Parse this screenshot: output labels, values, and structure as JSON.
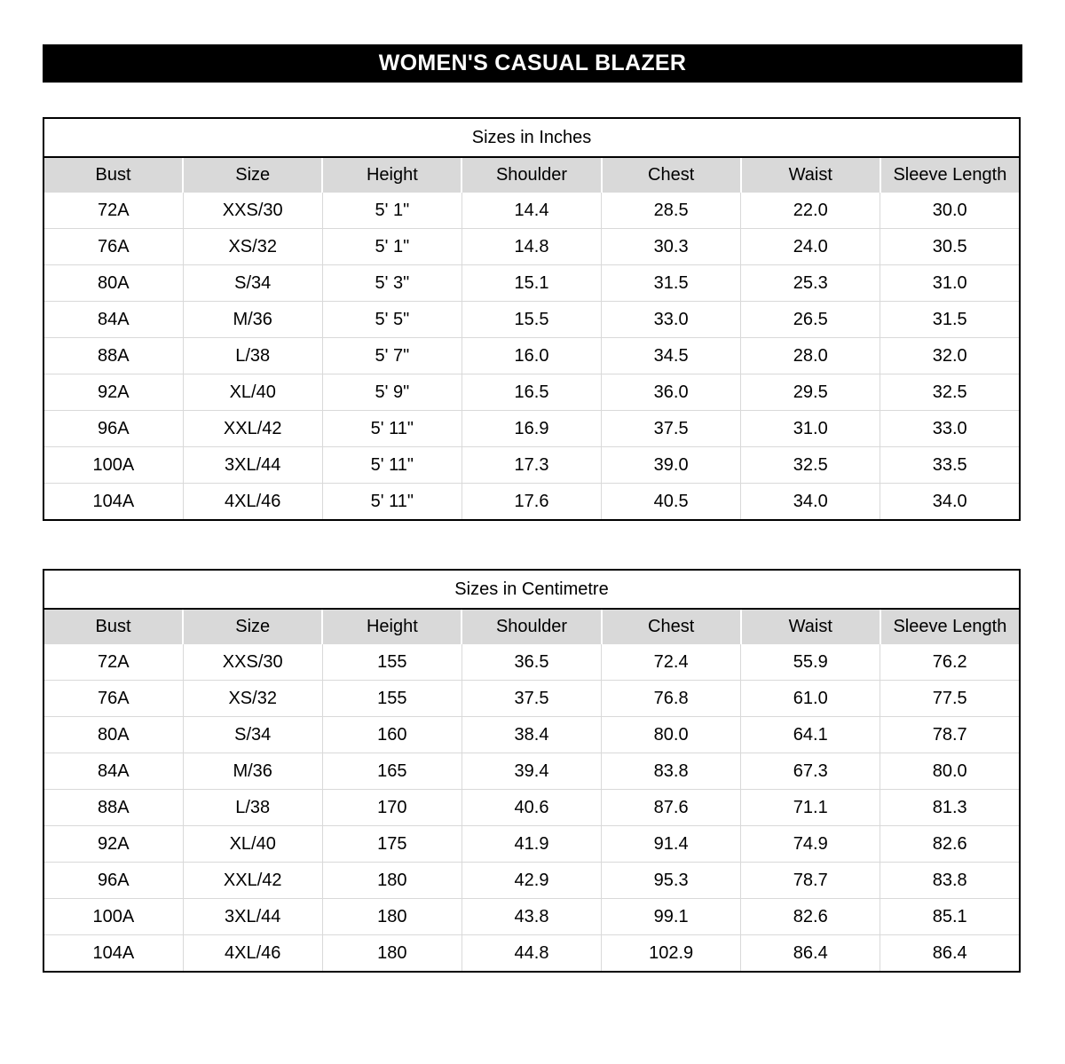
{
  "page_title": "WOMEN'S CASUAL BLAZER",
  "colors": {
    "title_bar_bg": "#000000",
    "title_bar_text": "#ffffff",
    "header_row_bg": "#d9d9d9",
    "grid_line": "#d9d9d9",
    "table_border": "#000000"
  },
  "tables": [
    {
      "title": "Sizes in Inches",
      "columns": [
        "Bust",
        "Size",
        "Height",
        "Shoulder",
        "Chest",
        "Waist",
        "Sleeve Length"
      ],
      "rows": [
        [
          "72A",
          "XXS/30",
          "5' 1\"",
          "14.4",
          "28.5",
          "22.0",
          "30.0"
        ],
        [
          "76A",
          "XS/32",
          "5' 1\"",
          "14.8",
          "30.3",
          "24.0",
          "30.5"
        ],
        [
          "80A",
          "S/34",
          "5' 3\"",
          "15.1",
          "31.5",
          "25.3",
          "31.0"
        ],
        [
          "84A",
          "M/36",
          "5' 5\"",
          "15.5",
          "33.0",
          "26.5",
          "31.5"
        ],
        [
          "88A",
          "L/38",
          "5' 7\"",
          "16.0",
          "34.5",
          "28.0",
          "32.0"
        ],
        [
          "92A",
          "XL/40",
          "5' 9\"",
          "16.5",
          "36.0",
          "29.5",
          "32.5"
        ],
        [
          "96A",
          "XXL/42",
          "5' 11\"",
          "16.9",
          "37.5",
          "31.0",
          "33.0"
        ],
        [
          "100A",
          "3XL/44",
          "5' 11\"",
          "17.3",
          "39.0",
          "32.5",
          "33.5"
        ],
        [
          "104A",
          "4XL/46",
          "5' 11\"",
          "17.6",
          "40.5",
          "34.0",
          "34.0"
        ]
      ]
    },
    {
      "title": "Sizes in Centimetre",
      "columns": [
        "Bust",
        "Size",
        "Height",
        "Shoulder",
        "Chest",
        "Waist",
        "Sleeve Length"
      ],
      "rows": [
        [
          "72A",
          "XXS/30",
          "155",
          "36.5",
          "72.4",
          "55.9",
          "76.2"
        ],
        [
          "76A",
          "XS/32",
          "155",
          "37.5",
          "76.8",
          "61.0",
          "77.5"
        ],
        [
          "80A",
          "S/34",
          "160",
          "38.4",
          "80.0",
          "64.1",
          "78.7"
        ],
        [
          "84A",
          "M/36",
          "165",
          "39.4",
          "83.8",
          "67.3",
          "80.0"
        ],
        [
          "88A",
          "L/38",
          "170",
          "40.6",
          "87.6",
          "71.1",
          "81.3"
        ],
        [
          "92A",
          "XL/40",
          "175",
          "41.9",
          "91.4",
          "74.9",
          "82.6"
        ],
        [
          "96A",
          "XXL/42",
          "180",
          "42.9",
          "95.3",
          "78.7",
          "83.8"
        ],
        [
          "100A",
          "3XL/44",
          "180",
          "43.8",
          "99.1",
          "82.6",
          "85.1"
        ],
        [
          "104A",
          "4XL/46",
          "180",
          "44.8",
          "102.9",
          "86.4",
          "86.4"
        ]
      ]
    }
  ]
}
